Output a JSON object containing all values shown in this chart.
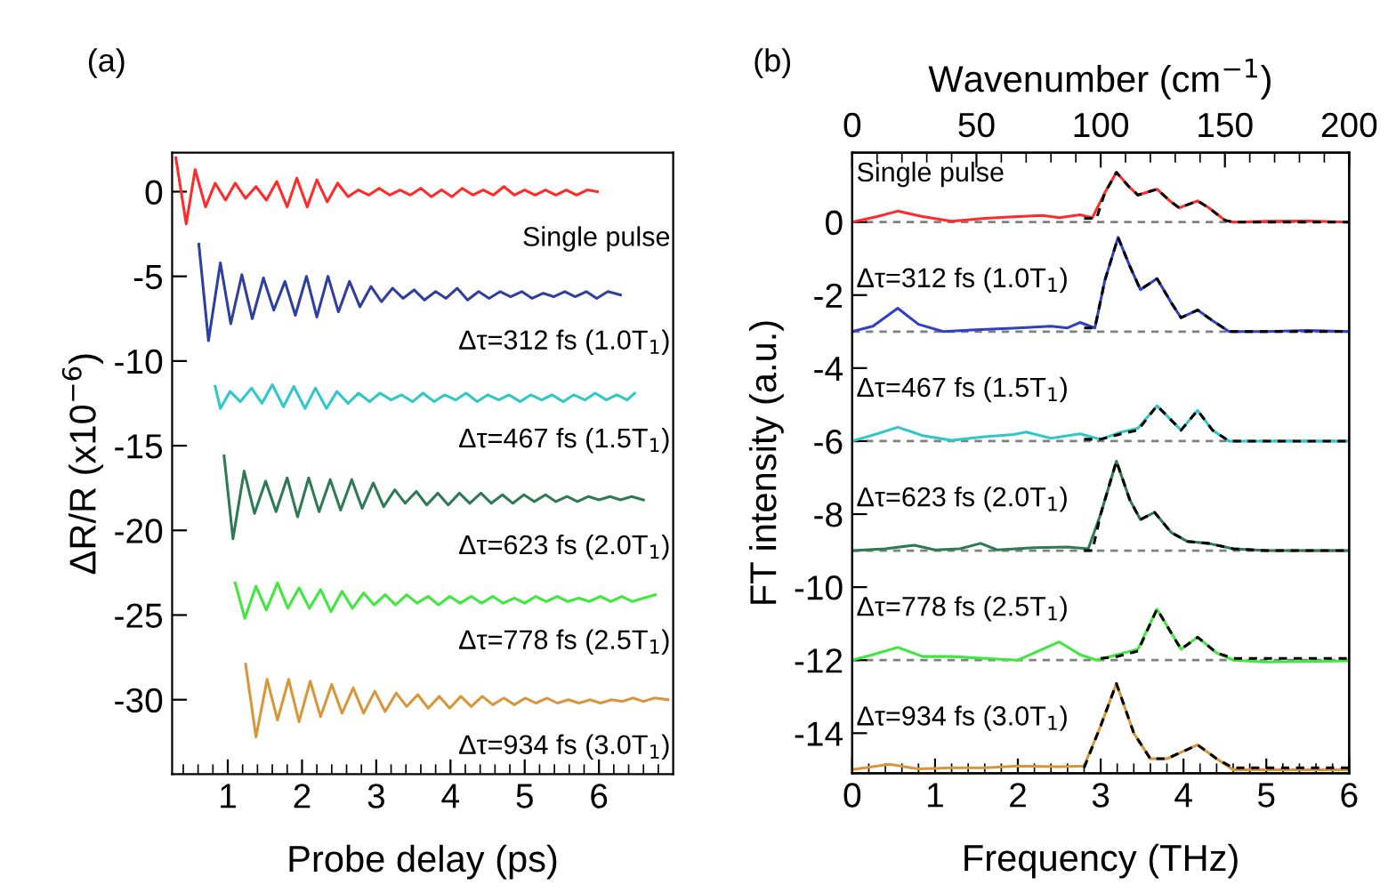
{
  "chart_data": [
    {
      "type": "line",
      "title": "(a)",
      "xlabel": "Probe delay (ps)",
      "ylabel": "ΔR/R (x10$^{−6}$)",
      "xlim": [
        0.25,
        7
      ],
      "ylim": [
        -34.4,
        2.3
      ],
      "xticks": [
        {
          "value": 0.4,
          "label": null
        },
        {
          "value": 0.6,
          "label": null
        },
        {
          "value": 0.8,
          "label": null
        },
        1,
        {
          "value": 1.2,
          "label": null
        },
        {
          "value": 1.4,
          "label": null
        },
        {
          "value": 1.6,
          "label": null
        },
        {
          "value": 1.8,
          "label": null
        },
        2,
        {
          "value": 2.2,
          "label": null
        },
        {
          "value": 2.4,
          "label": null
        },
        {
          "value": 2.6,
          "label": null
        },
        {
          "value": 2.8,
          "label": null
        },
        3,
        {
          "value": 3.2,
          "label": null
        },
        {
          "value": 3.4,
          "label": null
        },
        {
          "value": 3.6,
          "label": null
        },
        {
          "value": 3.8,
          "label": null
        },
        4,
        {
          "value": 4.2,
          "label": null
        },
        {
          "value": 4.4,
          "label": null
        },
        {
          "value": 4.6,
          "label": null
        },
        {
          "value": 4.8,
          "label": null
        },
        5,
        {
          "value": 5.2,
          "label": null
        },
        {
          "value": 5.4,
          "label": null
        },
        {
          "value": 5.6,
          "label": null
        },
        {
          "value": 5.8,
          "label": null
        },
        6,
        {
          "value": 6.2,
          "label": null
        },
        {
          "value": 6.4,
          "label": null
        },
        {
          "value": 6.6,
          "label": null
        },
        {
          "value": 6.8,
          "label": null
        }
      ],
      "yticks": [
        0,
        -5,
        -10,
        -15,
        -20,
        -25,
        -30
      ],
      "series": [
        {
          "name": "Single pulse",
          "color": "#ff2a2a",
          "x": [
            0.3,
            0.44,
            0.56,
            0.7,
            0.83,
            0.97,
            1.1,
            1.24,
            1.38,
            1.52,
            1.66,
            1.8,
            1.93,
            2.07,
            2.2,
            2.34,
            2.48,
            2.62,
            2.76,
            2.9,
            3.04,
            3.18,
            3.32,
            3.46,
            3.6,
            3.74,
            3.88,
            4.02,
            4.16,
            4.3,
            4.44,
            4.58,
            4.72,
            4.86,
            5.0,
            5.14,
            5.28,
            5.42,
            5.56,
            5.7,
            5.84,
            5.98
          ],
          "values": [
            2.0,
            -1.9,
            1.3,
            -0.9,
            0.5,
            -0.5,
            0.5,
            -0.4,
            0.3,
            -0.5,
            0.6,
            -0.9,
            0.8,
            -0.9,
            0.7,
            -0.6,
            0.5,
            -0.3,
            0.1,
            -0.2,
            0.2,
            -0.2,
            0.1,
            -0.2,
            0.2,
            -0.3,
            0.1,
            -0.3,
            0.2,
            -0.2,
            0.1,
            -0.2,
            0.3,
            -0.2,
            0.1,
            -0.2,
            0.1,
            -0.2,
            0.1,
            -0.2,
            0.1,
            0.0
          ]
        },
        {
          "name": "Δτ=312 fs (1.0T$_{1}$)",
          "color": "#2f3fa0",
          "x": [
            0.61,
            0.74,
            0.9,
            1.04,
            1.19,
            1.33,
            1.48,
            1.62,
            1.77,
            1.91,
            2.06,
            2.2,
            2.35,
            2.49,
            2.64,
            2.78,
            2.93,
            3.07,
            3.22,
            3.36,
            3.51,
            3.65,
            3.8,
            3.94,
            4.09,
            4.23,
            4.38,
            4.52,
            4.67,
            4.81,
            4.96,
            5.1,
            5.25,
            5.39,
            5.54,
            5.68,
            5.83,
            5.97,
            6.12,
            6.29
          ],
          "values": [
            -3.1,
            -8.8,
            -4.2,
            -7.8,
            -4.9,
            -7.5,
            -5.1,
            -7.0,
            -5.3,
            -7.3,
            -5.0,
            -7.4,
            -5.0,
            -7.1,
            -5.3,
            -6.8,
            -5.6,
            -6.5,
            -5.7,
            -6.3,
            -5.8,
            -6.4,
            -5.9,
            -6.3,
            -5.7,
            -6.4,
            -5.9,
            -6.3,
            -5.9,
            -6.2,
            -5.9,
            -6.3,
            -6.0,
            -6.2,
            -5.9,
            -6.2,
            -5.9,
            -6.3,
            -5.9,
            -6.1
          ]
        },
        {
          "name": "Δτ=467 fs (1.5T$_{1}$)",
          "color": "#2ec8c8",
          "x": [
            0.83,
            0.9,
            1.03,
            1.17,
            1.32,
            1.46,
            1.6,
            1.75,
            1.89,
            2.04,
            2.18,
            2.33,
            2.47,
            2.62,
            2.76,
            2.91,
            3.05,
            3.2,
            3.34,
            3.49,
            3.63,
            3.78,
            3.92,
            4.07,
            4.21,
            4.36,
            4.5,
            4.65,
            4.79,
            4.94,
            5.08,
            5.23,
            5.37,
            5.52,
            5.66,
            5.81,
            5.95,
            6.1,
            6.24,
            6.38,
            6.48
          ],
          "values": [
            -11.5,
            -12.8,
            -11.8,
            -12.4,
            -11.6,
            -12.5,
            -11.4,
            -12.7,
            -11.5,
            -12.8,
            -11.6,
            -12.8,
            -11.8,
            -12.5,
            -11.9,
            -12.4,
            -11.9,
            -12.3,
            -12.0,
            -12.4,
            -11.9,
            -12.4,
            -12.0,
            -12.3,
            -11.9,
            -12.4,
            -12.0,
            -12.3,
            -12.0,
            -12.4,
            -12.0,
            -12.3,
            -12.0,
            -12.4,
            -12.0,
            -12.3,
            -11.9,
            -12.3,
            -12.0,
            -12.3,
            -11.9
          ]
        },
        {
          "name": "Δτ=623 fs (2.0T$_{1}$)",
          "color": "#2e7a52",
          "x": [
            0.95,
            1.07,
            1.22,
            1.36,
            1.51,
            1.65,
            1.8,
            1.94,
            2.09,
            2.23,
            2.38,
            2.52,
            2.67,
            2.81,
            2.96,
            3.1,
            3.25,
            3.39,
            3.54,
            3.68,
            3.83,
            3.97,
            4.12,
            4.26,
            4.41,
            4.55,
            4.7,
            4.84,
            4.99,
            5.13,
            5.28,
            5.42,
            5.57,
            5.71,
            5.86,
            6.0,
            6.15,
            6.29,
            6.44,
            6.6
          ],
          "values": [
            -15.6,
            -20.5,
            -16.5,
            -19.0,
            -17.1,
            -18.9,
            -16.9,
            -19.2,
            -16.9,
            -18.9,
            -17.0,
            -18.8,
            -17.0,
            -18.7,
            -17.2,
            -18.6,
            -17.6,
            -18.4,
            -17.7,
            -18.5,
            -17.8,
            -18.5,
            -17.8,
            -18.4,
            -17.8,
            -18.4,
            -17.9,
            -18.4,
            -17.9,
            -18.3,
            -17.9,
            -18.3,
            -18.0,
            -18.3,
            -18.0,
            -18.2,
            -18.0,
            -18.2,
            -18.0,
            -18.2
          ]
        },
        {
          "name": "Δτ=778 fs (2.5T$_{1}$)",
          "color": "#3ee83e",
          "x": [
            1.1,
            1.23,
            1.38,
            1.52,
            1.67,
            1.81,
            1.96,
            2.1,
            2.25,
            2.39,
            2.54,
            2.68,
            2.83,
            2.97,
            3.12,
            3.26,
            3.41,
            3.55,
            3.7,
            3.84,
            3.99,
            4.13,
            4.28,
            4.42,
            4.57,
            4.71,
            4.86,
            5.0,
            5.15,
            5.29,
            5.44,
            5.58,
            5.73,
            5.87,
            6.02,
            6.16,
            6.31,
            6.45,
            6.6,
            6.76
          ],
          "values": [
            -23.1,
            -25.2,
            -23.3,
            -24.7,
            -23.1,
            -24.6,
            -23.4,
            -24.6,
            -23.5,
            -24.8,
            -23.6,
            -24.6,
            -23.7,
            -24.4,
            -23.8,
            -24.4,
            -23.8,
            -24.3,
            -23.9,
            -24.4,
            -23.9,
            -24.3,
            -23.9,
            -24.3,
            -23.9,
            -24.3,
            -24.0,
            -24.3,
            -23.9,
            -24.2,
            -23.9,
            -24.2,
            -24.0,
            -24.2,
            -23.9,
            -24.2,
            -23.9,
            -24.2,
            -24.0,
            -23.8
          ]
        },
        {
          "name": "Δτ=934 fs (3.0T$_{1}$)",
          "color": "#d8963a",
          "x": [
            1.24,
            1.38,
            1.53,
            1.67,
            1.82,
            1.96,
            2.11,
            2.25,
            2.4,
            2.54,
            2.69,
            2.83,
            2.98,
            3.12,
            3.27,
            3.41,
            3.56,
            3.7,
            3.85,
            3.99,
            4.14,
            4.28,
            4.43,
            4.57,
            4.72,
            4.86,
            5.01,
            5.15,
            5.3,
            5.44,
            5.59,
            5.73,
            5.88,
            6.02,
            6.17,
            6.31,
            6.46,
            6.6,
            6.75,
            6.93
          ],
          "values": [
            -27.9,
            -32.2,
            -28.8,
            -31.2,
            -28.8,
            -31.3,
            -28.9,
            -31.0,
            -29.1,
            -30.8,
            -29.3,
            -30.8,
            -29.5,
            -30.7,
            -29.6,
            -30.4,
            -29.7,
            -30.5,
            -29.8,
            -30.5,
            -29.8,
            -30.4,
            -29.8,
            -30.3,
            -29.9,
            -30.3,
            -29.9,
            -30.2,
            -29.9,
            -30.2,
            -30.0,
            -30.2,
            -30.0,
            -30.2,
            -30.0,
            -30.1,
            -29.9,
            -30.1,
            -29.9,
            -30.0
          ]
        }
      ]
    },
    {
      "type": "line",
      "title": "(b)",
      "xlabel": "Frequency (THz)",
      "ylabel": "FT intensity (a.u.)",
      "x2label": "Wavenumber (cm$^{−1}$)",
      "xlim": [
        0,
        6
      ],
      "ylim": [
        -15.1,
        1.9
      ],
      "x2lim": [
        0,
        200
      ],
      "xticks": [
        0,
        {
          "value": 0.2,
          "label": null
        },
        {
          "value": 0.4,
          "label": null
        },
        {
          "value": 0.6,
          "label": null
        },
        {
          "value": 0.8,
          "label": null
        },
        1,
        {
          "value": 1.2,
          "label": null
        },
        {
          "value": 1.4,
          "label": null
        },
        {
          "value": 1.6,
          "label": null
        },
        {
          "value": 1.8,
          "label": null
        },
        2,
        {
          "value": 2.2,
          "label": null
        },
        {
          "value": 2.4,
          "label": null
        },
        {
          "value": 2.6,
          "label": null
        },
        {
          "value": 2.8,
          "label": null
        },
        3,
        {
          "value": 3.2,
          "label": null
        },
        {
          "value": 3.4,
          "label": null
        },
        {
          "value": 3.6,
          "label": null
        },
        {
          "value": 3.8,
          "label": null
        },
        4,
        {
          "value": 4.2,
          "label": null
        },
        {
          "value": 4.4,
          "label": null
        },
        {
          "value": 4.6,
          "label": null
        },
        {
          "value": 4.8,
          "label": null
        },
        5,
        {
          "value": 5.2,
          "label": null
        },
        {
          "value": 5.4,
          "label": null
        },
        {
          "value": 5.6,
          "label": null
        },
        {
          "value": 5.8,
          "label": null
        },
        6
      ],
      "x2ticks": [
        0,
        {
          "value": 10,
          "label": null
        },
        {
          "value": 20,
          "label": null
        },
        {
          "value": 30,
          "label": null
        },
        {
          "value": 40,
          "label": null
        },
        50,
        {
          "value": 60,
          "label": null
        },
        {
          "value": 70,
          "label": null
        },
        {
          "value": 80,
          "label": null
        },
        {
          "value": 90,
          "label": null
        },
        100,
        {
          "value": 110,
          "label": null
        },
        {
          "value": 120,
          "label": null
        },
        {
          "value": 130,
          "label": null
        },
        {
          "value": 140,
          "label": null
        },
        150,
        {
          "value": 160,
          "label": null
        },
        {
          "value": 170,
          "label": null
        },
        {
          "value": 180,
          "label": null
        },
        {
          "value": 190,
          "label": null
        },
        200
      ],
      "yticks": [
        0,
        -2,
        -4,
        -6,
        -8,
        -10,
        -12,
        -14
      ],
      "ref_lines": [
        {
          "axis": "y",
          "value": 0,
          "color": "#808080",
          "line_style": "dashed"
        },
        {
          "axis": "y",
          "value": -3,
          "color": "#808080",
          "line_style": "dashed"
        },
        {
          "axis": "y",
          "value": -6,
          "color": "#808080",
          "line_style": "dashed"
        },
        {
          "axis": "y",
          "value": -9,
          "color": "#808080",
          "line_style": "dashed"
        },
        {
          "axis": "y",
          "value": -12,
          "color": "#808080",
          "line_style": "dashed"
        }
      ],
      "series": [
        {
          "name": "Single pulse",
          "color": "#ff2a2a",
          "x": [
            0,
            0.3,
            0.55,
            0.85,
            1.2,
            1.6,
            2.0,
            2.3,
            2.5,
            2.75,
            2.9,
            3.05,
            3.19,
            3.35,
            3.45,
            3.68,
            3.85,
            3.95,
            4.17,
            4.3,
            4.5,
            4.6,
            5,
            5.5,
            6
          ],
          "values": [
            0,
            0.15,
            0.3,
            0.15,
            0.02,
            0.1,
            0.15,
            0.18,
            0.12,
            0.2,
            0.12,
            0.8,
            1.36,
            0.95,
            0.74,
            0.9,
            0.55,
            0.39,
            0.58,
            0.4,
            0.05,
            0,
            0.02,
            0.03,
            0
          ]
        },
        {
          "name": "Δτ=312 fs (1.0T$_{1}$)",
          "color": "#2f3fc8",
          "x": [
            0,
            0.25,
            0.55,
            0.8,
            1.1,
            1.5,
            2.0,
            2.4,
            2.6,
            2.75,
            2.93,
            3.05,
            3.21,
            3.35,
            3.48,
            3.68,
            3.85,
            3.97,
            4.17,
            4.35,
            4.55,
            5,
            5.5,
            6
          ],
          "values": [
            -3,
            -2.85,
            -2.36,
            -2.8,
            -3,
            -2.95,
            -2.9,
            -2.85,
            -2.9,
            -2.75,
            -2.9,
            -1.6,
            -0.42,
            -1.2,
            -1.85,
            -1.55,
            -2.2,
            -2.62,
            -2.41,
            -2.7,
            -3,
            -3,
            -2.97,
            -3
          ]
        },
        {
          "name": "Δτ=467 fs (1.5T$_{1}$)",
          "color": "#2ec8c8",
          "x": [
            0,
            0.3,
            0.55,
            0.85,
            1.2,
            1.6,
            1.95,
            2.1,
            2.4,
            2.75,
            3.0,
            3.25,
            3.45,
            3.68,
            3.97,
            4.17,
            4.35,
            4.55,
            5,
            6
          ],
          "values": [
            -6,
            -5.8,
            -5.62,
            -5.85,
            -5.98,
            -5.88,
            -5.82,
            -5.75,
            -5.92,
            -5.8,
            -5.95,
            -5.75,
            -5.65,
            -5.03,
            -5.7,
            -5.16,
            -5.7,
            -6,
            -6,
            -6
          ]
        },
        {
          "name": "Δτ=623 fs (2.0T$_{1}$)",
          "color": "#2e7a52",
          "x": [
            0,
            0.4,
            0.75,
            1.0,
            1.3,
            1.55,
            1.75,
            2.2,
            2.6,
            2.85,
            3.0,
            3.19,
            3.35,
            3.48,
            3.65,
            3.85,
            4.05,
            4.3,
            4.6,
            5,
            6
          ],
          "values": [
            -9,
            -8.95,
            -8.85,
            -8.98,
            -8.95,
            -8.8,
            -8.98,
            -8.92,
            -8.9,
            -8.95,
            -8.0,
            -6.55,
            -7.6,
            -8.15,
            -7.95,
            -8.5,
            -8.75,
            -8.8,
            -8.95,
            -9,
            -9
          ]
        },
        {
          "name": "Δτ=778 fs (2.5T$_{1}$)",
          "color": "#3ee83e",
          "x": [
            0,
            0.25,
            0.55,
            0.85,
            1.2,
            1.6,
            2.0,
            2.25,
            2.5,
            2.75,
            2.95,
            3.2,
            3.45,
            3.68,
            3.97,
            4.17,
            4.4,
            4.6,
            5,
            6
          ],
          "values": [
            -12,
            -11.85,
            -11.65,
            -11.9,
            -11.9,
            -11.95,
            -12,
            -11.75,
            -11.5,
            -11.85,
            -12,
            -11.85,
            -11.7,
            -10.6,
            -11.7,
            -11.37,
            -11.8,
            -12,
            -12.05,
            -12.02
          ]
        },
        {
          "name": "Δτ=934 fs (3.0T$_{1}$)",
          "color": "#d8963a",
          "x": [
            0,
            0.45,
            0.8,
            1.2,
            1.6,
            2.0,
            2.5,
            2.8,
            3.0,
            3.19,
            3.4,
            3.6,
            3.8,
            4.17,
            4.4,
            4.6,
            5,
            6
          ],
          "values": [
            -15,
            -14.85,
            -14.98,
            -14.95,
            -14.95,
            -14.9,
            -14.92,
            -14.9,
            -13.8,
            -12.64,
            -14.0,
            -14.7,
            -14.7,
            -14.32,
            -14.7,
            -15,
            -15,
            -15
          ]
        },
        {
          "color": "#000000",
          "line_style": "dashed",
          "x": [
            2.8,
            2.95,
            3.05,
            3.19,
            3.35,
            3.45,
            3.68,
            3.85,
            3.95,
            4.17,
            4.3,
            4.5,
            4.6,
            5,
            5.5,
            6
          ],
          "values": [
            0.1,
            0.1,
            0.8,
            1.36,
            0.95,
            0.74,
            0.9,
            0.55,
            0.39,
            0.58,
            0.4,
            0.05,
            0,
            0,
            0,
            0
          ]
        },
        {
          "color": "#000000",
          "line_style": "dashed",
          "x": [
            2.8,
            2.93,
            3.05,
            3.21,
            3.35,
            3.48,
            3.68,
            3.85,
            3.97,
            4.17,
            4.35,
            4.55,
            5,
            6
          ],
          "values": [
            -2.9,
            -2.9,
            -1.6,
            -0.42,
            -1.2,
            -1.85,
            -1.55,
            -2.2,
            -2.62,
            -2.41,
            -2.7,
            -3,
            -3,
            -3
          ]
        },
        {
          "color": "#000000",
          "line_style": "dashed",
          "x": [
            2.8,
            3.0,
            3.25,
            3.45,
            3.68,
            3.97,
            4.17,
            4.35,
            4.55,
            5,
            6
          ],
          "values": [
            -5.95,
            -5.95,
            -5.8,
            -5.7,
            -5.03,
            -5.7,
            -5.16,
            -5.7,
            -6,
            -6,
            -6
          ]
        },
        {
          "color": "#000000",
          "line_style": "dashed",
          "x": [
            2.8,
            2.9,
            3.0,
            3.19,
            3.35,
            3.48,
            3.65,
            3.85,
            4.05,
            4.3,
            4.6,
            5,
            6
          ],
          "values": [
            -9,
            -9,
            -8.0,
            -6.55,
            -7.6,
            -8.15,
            -7.95,
            -8.5,
            -8.75,
            -8.8,
            -8.95,
            -9,
            -9
          ]
        },
        {
          "color": "#000000",
          "line_style": "dashed",
          "x": [
            3.0,
            3.2,
            3.45,
            3.68,
            3.97,
            4.17,
            4.4,
            4.6,
            5,
            6
          ],
          "values": [
            -11.95,
            -11.9,
            -11.75,
            -10.6,
            -11.7,
            -11.37,
            -11.8,
            -11.95,
            -11.95,
            -11.95
          ]
        },
        {
          "color": "#000000",
          "line_style": "dashed",
          "x": [
            2.8,
            3.0,
            3.19,
            3.4,
            3.6,
            3.8,
            4.17,
            4.4,
            4.6,
            5,
            6
          ],
          "values": [
            -14.95,
            -13.8,
            -12.64,
            -14.0,
            -14.7,
            -14.7,
            -14.32,
            -14.7,
            -14.95,
            -14.95,
            -14.95
          ]
        }
      ]
    }
  ]
}
